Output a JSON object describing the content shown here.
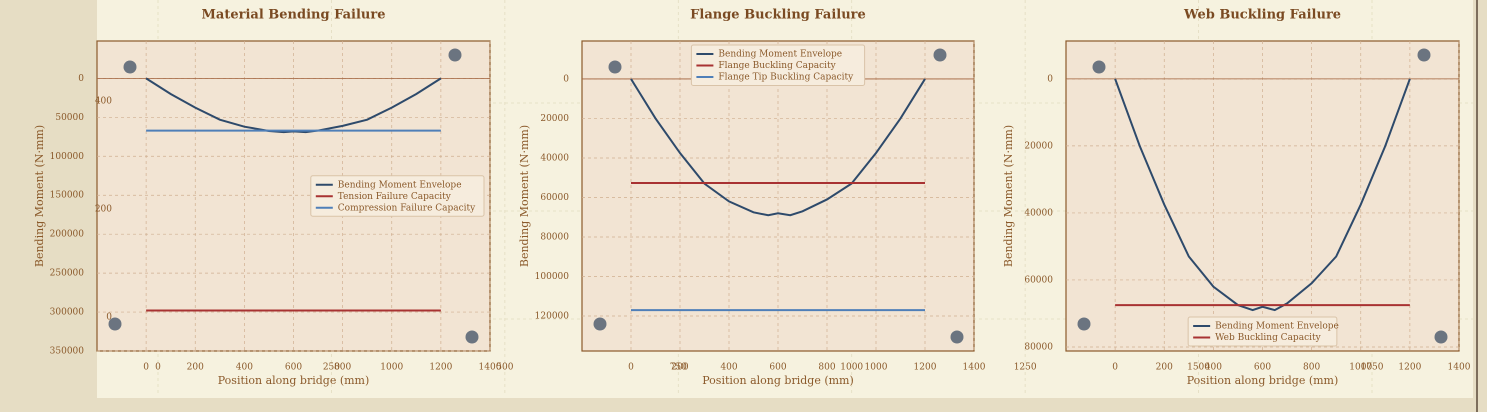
{
  "chart_data": [
    {
      "type": "line",
      "title": "Material Bending Failure",
      "xlabel": "Position along bridge (mm)",
      "ylabel": "Bending Moment (N·mm)",
      "xlim": [
        -200,
        1400
      ],
      "xticks": [
        0,
        200,
        400,
        600,
        800,
        1000,
        1200,
        1400
      ],
      "ylim": [
        -48000,
        350000
      ],
      "yticks": [
        0,
        50000,
        100000,
        150000,
        200000,
        250000,
        300000,
        350000
      ],
      "y_inverted": true,
      "grid": true,
      "legend_loc": "center right",
      "series": [
        {
          "name": "Bending Moment Envelope",
          "color": "#2e4a6b",
          "x": [
            0,
            100,
            200,
            300,
            400,
            500,
            560,
            600,
            650,
            700,
            800,
            900,
            1000,
            1100,
            1200
          ],
          "values": [
            0,
            20000,
            37500,
            53000,
            62000,
            67500,
            69000,
            68000,
            69000,
            67000,
            61000,
            53000,
            37500,
            20000,
            0
          ]
        },
        {
          "name": "Tension Failure Capacity",
          "color": "#a83232",
          "x": [
            0,
            1200
          ],
          "values": [
            298000,
            298000
          ]
        },
        {
          "name": "Compression Failure Capacity",
          "color": "#4f7fb8",
          "x": [
            0,
            1200
          ],
          "values": [
            67000,
            67000
          ]
        }
      ]
    },
    {
      "type": "line",
      "title": "Flange Buckling Failure",
      "xlabel": "Position along bridge (mm)",
      "ylabel": "Bending Moment (N·mm)",
      "xlim": [
        -200,
        1400
      ],
      "xticks": [
        0,
        200,
        400,
        600,
        800,
        1000,
        1200,
        1400
      ],
      "ylim": [
        -19200,
        137700
      ],
      "yticks": [
        0,
        20000,
        40000,
        60000,
        80000,
        100000,
        120000
      ],
      "y_inverted": true,
      "grid": true,
      "legend_loc": "upper center",
      "series": [
        {
          "name": "Bending Moment Envelope",
          "color": "#2e4a6b",
          "x": [
            0,
            100,
            200,
            300,
            400,
            500,
            560,
            600,
            650,
            700,
            800,
            900,
            1000,
            1100,
            1200
          ],
          "values": [
            0,
            20000,
            37500,
            53000,
            62000,
            67500,
            69000,
            68000,
            69000,
            67000,
            61000,
            53000,
            37500,
            20000,
            0
          ]
        },
        {
          "name": "Flange Buckling Capacity",
          "color": "#a83232",
          "x": [
            0,
            1200
          ],
          "values": [
            52700,
            52700
          ]
        },
        {
          "name": "Flange Tip Buckling Capacity",
          "color": "#4f7fb8",
          "x": [
            0,
            1200
          ],
          "values": [
            117000,
            117000
          ]
        }
      ]
    },
    {
      "type": "line",
      "title": "Web Buckling Failure",
      "xlabel": "Position along bridge (mm)",
      "ylabel": "Bending Moment (N·mm)",
      "xlim": [
        -200,
        1400
      ],
      "xticks": [
        0,
        200,
        400,
        600,
        800,
        1000,
        1200,
        1400
      ],
      "ylim": [
        -11300,
        81200
      ],
      "yticks": [
        0,
        20000,
        40000,
        60000,
        80000
      ],
      "y_inverted": true,
      "grid": true,
      "legend_loc": "lower center",
      "series": [
        {
          "name": "Bending Moment Envelope",
          "color": "#2e4a6b",
          "x": [
            0,
            100,
            200,
            300,
            400,
            500,
            560,
            600,
            650,
            700,
            800,
            900,
            1000,
            1100,
            1200
          ],
          "values": [
            0,
            20000,
            37500,
            53000,
            62000,
            67500,
            69000,
            68000,
            69000,
            67000,
            61000,
            53000,
            37500,
            20000,
            0
          ]
        },
        {
          "name": "Web Buckling Capacity",
          "color": "#a83232",
          "x": [
            0,
            1200
          ],
          "values": [
            67500,
            67500
          ]
        }
      ]
    },
    {
      "type": "overlay",
      "xlim": [
        0,
        1750
      ],
      "xticks": [
        0,
        250,
        500,
        750,
        1000,
        1250,
        1500,
        1750
      ],
      "ylim": [
        0,
        400
      ],
      "yticks": [
        0,
        200,
        400
      ],
      "grid": true
    }
  ]
}
